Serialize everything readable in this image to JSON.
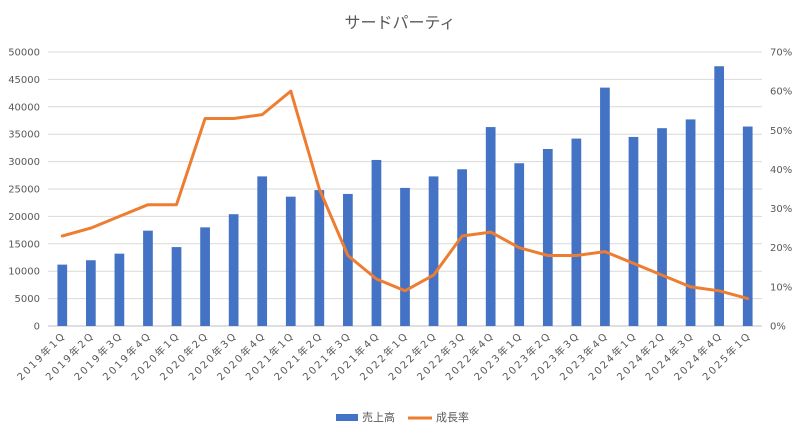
{
  "chart_data": {
    "type": "bar+line",
    "title": "サードパーティ",
    "categories": [
      "2019年1Q",
      "2019年2Q",
      "2019年3Q",
      "2019年4Q",
      "2020年1Q",
      "2020年2Q",
      "2020年3Q",
      "2020年4Q",
      "2021年1Q",
      "2021年2Q",
      "2021年3Q",
      "2021年4Q",
      "2022年1Q",
      "2022年2Q",
      "2022年3Q",
      "2022年4Q",
      "2023年1Q",
      "2023年2Q",
      "2023年3Q",
      "2023年4Q",
      "2024年1Q",
      "2024年2Q",
      "2024年3Q",
      "2024年4Q",
      "2025年1Q"
    ],
    "series": [
      {
        "name": "売上高",
        "type": "bar",
        "axis": "left",
        "color": "#4472C4",
        "values": [
          11200,
          12000,
          13200,
          17400,
          14400,
          18000,
          20400,
          27300,
          23600,
          24800,
          24100,
          30300,
          25200,
          27300,
          28600,
          36300,
          29700,
          32300,
          34200,
          43500,
          34500,
          36100,
          37700,
          47400,
          36400
        ]
      },
      {
        "name": "成長率",
        "type": "line",
        "axis": "right",
        "color": "#ED7D31",
        "values": [
          0.23,
          0.25,
          0.28,
          0.31,
          0.31,
          0.53,
          0.53,
          0.54,
          0.6,
          0.35,
          0.18,
          0.12,
          0.09,
          0.13,
          0.23,
          0.24,
          0.2,
          0.18,
          0.18,
          0.19,
          0.16,
          0.13,
          0.1,
          0.09,
          0.07
        ]
      }
    ],
    "y_left": {
      "ylim": [
        0,
        50000
      ],
      "ticks": [
        0,
        5000,
        10000,
        15000,
        20000,
        25000,
        30000,
        35000,
        40000,
        45000,
        50000
      ],
      "tick_labels": [
        "0",
        "5000",
        "10000",
        "15000",
        "20000",
        "25000",
        "30000",
        "35000",
        "40000",
        "45000",
        "50000"
      ]
    },
    "y_right": {
      "ylim": [
        0,
        0.7
      ],
      "ticks": [
        0,
        0.1,
        0.2,
        0.3,
        0.4,
        0.5,
        0.6,
        0.7
      ],
      "tick_labels": [
        "0%",
        "10%",
        "20%",
        "30%",
        "40%",
        "50%",
        "60%",
        "70%"
      ]
    },
    "grid": true,
    "legend_position": "bottom"
  }
}
